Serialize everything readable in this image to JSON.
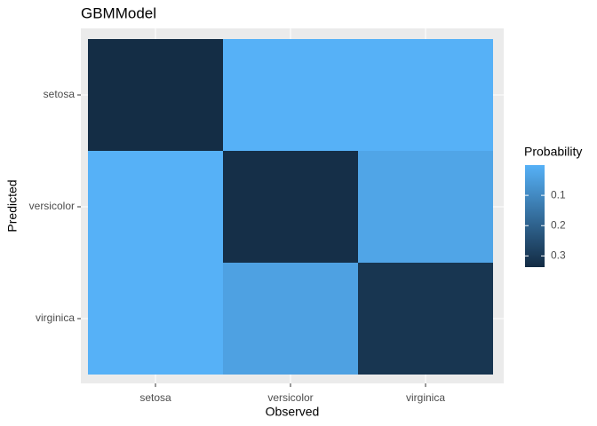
{
  "chart_data": {
    "type": "heatmap",
    "title": "GBMModel",
    "x_label": "Observed",
    "y_label": "Predicted",
    "x_categories": [
      "setosa",
      "versicolor",
      "virginica"
    ],
    "y_categories": [
      "setosa",
      "versicolor",
      "virginica"
    ],
    "values": [
      [
        0.333,
        0,
        0
      ],
      [
        0,
        0.327,
        0.03
      ],
      [
        0,
        0.04,
        0.31
      ]
    ],
    "colorscale": {
      "title": "Probability",
      "low": "#56B1F7",
      "high": "#132B43",
      "lim": [
        0,
        0.337
      ],
      "ticks": [
        0.1,
        0.2,
        0.3
      ]
    },
    "grid": true
  }
}
